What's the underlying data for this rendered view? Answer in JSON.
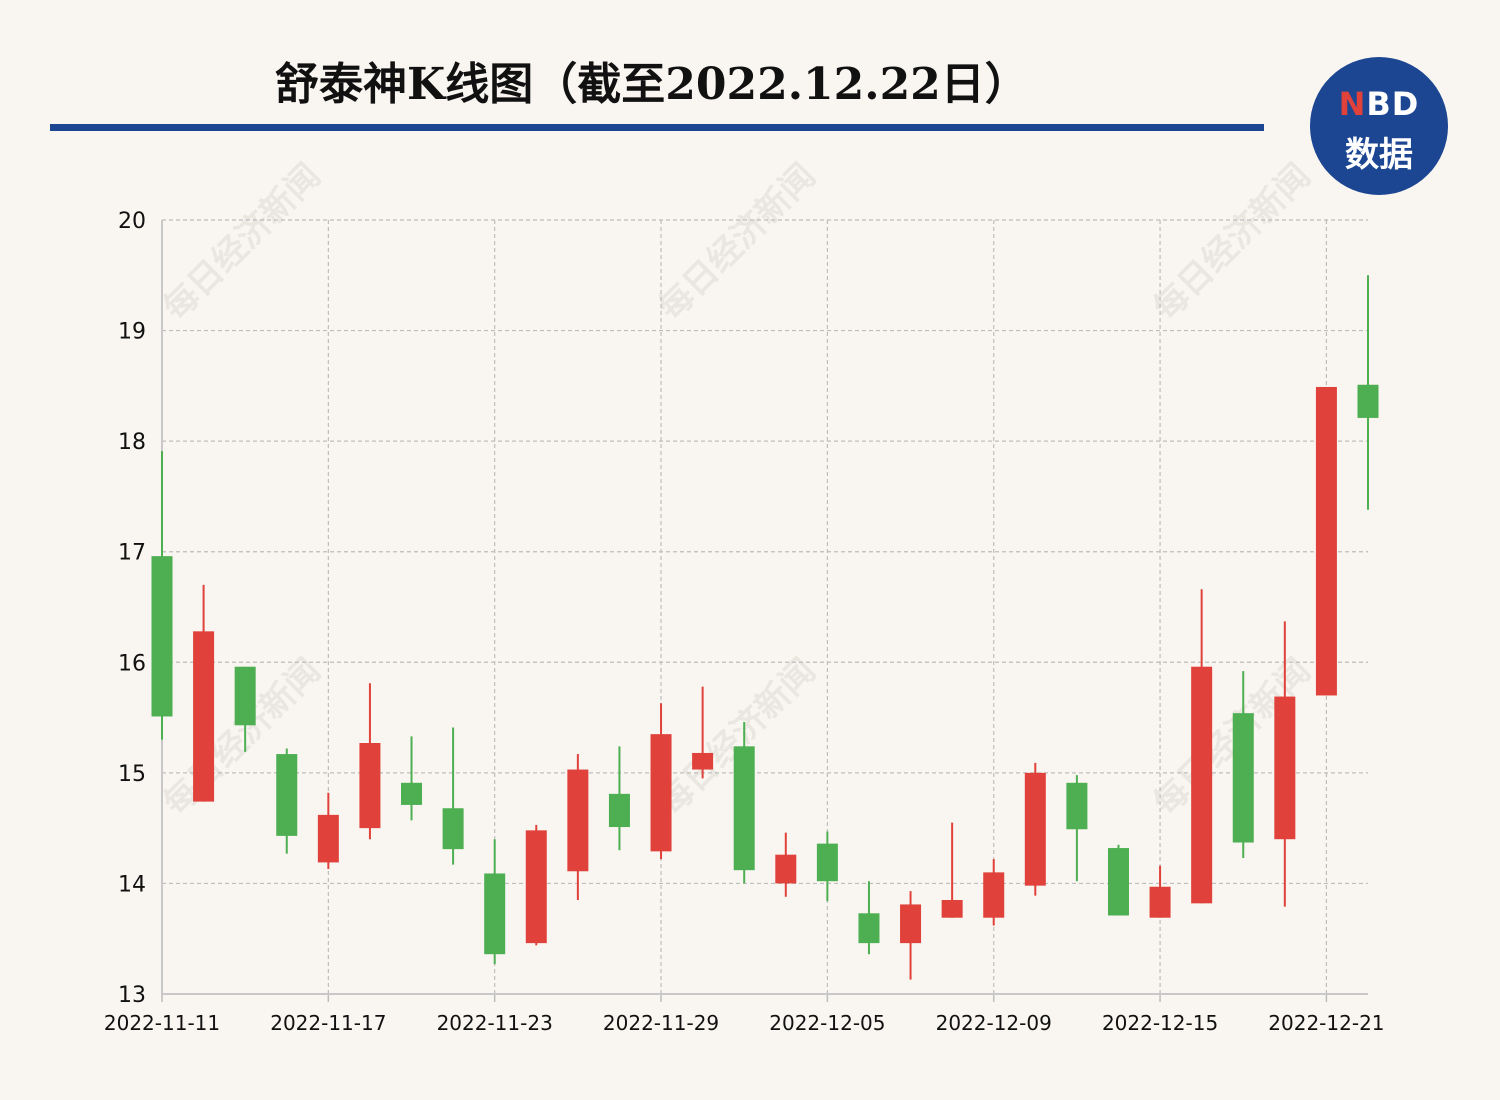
{
  "title": "舒泰神K线图（截至2022.12.22日）",
  "logo": {
    "line1_accent": "N",
    "line1_rest": "BD",
    "line2": "数据"
  },
  "watermark_text": "每日经济新闻",
  "colors": {
    "up": "#e0413a",
    "down": "#4daf52",
    "accent": "#1c4692",
    "grid": "#bdbdbd"
  },
  "chart_data": {
    "type": "candlestick",
    "title": "舒泰神K线图（截至2022.12.22日）",
    "ylim": [
      13,
      20
    ],
    "yticks": [
      "13",
      "14",
      "15",
      "16",
      "17",
      "18",
      "19",
      "20"
    ],
    "xtick_labels": [
      "2022-11-11",
      "2022-11-17",
      "2022-11-23",
      "2022-11-29",
      "2022-12-05",
      "2022-12-09",
      "2022-12-15",
      "2022-12-21"
    ],
    "xtick_index": [
      0,
      4,
      8,
      12,
      16,
      20,
      24,
      28
    ],
    "grid": true,
    "candles": [
      {
        "open": 16.96,
        "close": 15.51,
        "high": 17.91,
        "low": 15.3
      },
      {
        "open": 14.74,
        "close": 16.28,
        "high": 16.7,
        "low": 14.74
      },
      {
        "open": 15.96,
        "close": 15.43,
        "high": 15.96,
        "low": 15.19
      },
      {
        "open": 15.17,
        "close": 14.43,
        "high": 15.22,
        "low": 14.27
      },
      {
        "open": 14.19,
        "close": 14.62,
        "high": 14.82,
        "low": 14.13
      },
      {
        "open": 14.5,
        "close": 15.27,
        "high": 15.81,
        "low": 14.4
      },
      {
        "open": 14.91,
        "close": 14.71,
        "high": 15.33,
        "low": 14.57
      },
      {
        "open": 14.68,
        "close": 14.31,
        "high": 15.41,
        "low": 14.17
      },
      {
        "open": 14.09,
        "close": 13.36,
        "high": 14.4,
        "low": 13.27
      },
      {
        "open": 13.46,
        "close": 14.48,
        "high": 14.53,
        "low": 13.44
      },
      {
        "open": 14.11,
        "close": 15.03,
        "high": 15.17,
        "low": 13.85
      },
      {
        "open": 14.81,
        "close": 14.51,
        "high": 15.24,
        "low": 14.3
      },
      {
        "open": 14.29,
        "close": 15.35,
        "high": 15.63,
        "low": 14.22
      },
      {
        "open": 15.03,
        "close": 15.18,
        "high": 15.78,
        "low": 14.95
      },
      {
        "open": 15.24,
        "close": 14.12,
        "high": 15.46,
        "low": 14.0
      },
      {
        "open": 14.0,
        "close": 14.26,
        "high": 14.46,
        "low": 13.88
      },
      {
        "open": 14.36,
        "close": 14.02,
        "high": 14.47,
        "low": 13.84
      },
      {
        "open": 13.73,
        "close": 13.46,
        "high": 14.02,
        "low": 13.36
      },
      {
        "open": 13.46,
        "close": 13.81,
        "high": 13.93,
        "low": 13.13
      },
      {
        "open": 13.69,
        "close": 13.85,
        "high": 14.55,
        "low": 13.69
      },
      {
        "open": 13.69,
        "close": 14.1,
        "high": 14.22,
        "low": 13.62
      },
      {
        "open": 13.98,
        "close": 15.0,
        "high": 15.09,
        "low": 13.89
      },
      {
        "open": 14.91,
        "close": 14.49,
        "high": 14.98,
        "low": 14.02
      },
      {
        "open": 14.32,
        "close": 13.71,
        "high": 14.35,
        "low": 13.71
      },
      {
        "open": 13.69,
        "close": 13.97,
        "high": 14.16,
        "low": 13.69
      },
      {
        "open": 13.82,
        "close": 15.96,
        "high": 16.66,
        "low": 13.82
      },
      {
        "open": 15.54,
        "close": 14.37,
        "high": 15.92,
        "low": 14.23
      },
      {
        "open": 14.4,
        "close": 15.69,
        "high": 16.37,
        "low": 13.79
      },
      {
        "open": 15.7,
        "close": 18.49,
        "high": 18.49,
        "low": 15.7
      },
      {
        "open": 18.51,
        "close": 18.21,
        "high": 19.5,
        "low": 17.38
      }
    ]
  }
}
